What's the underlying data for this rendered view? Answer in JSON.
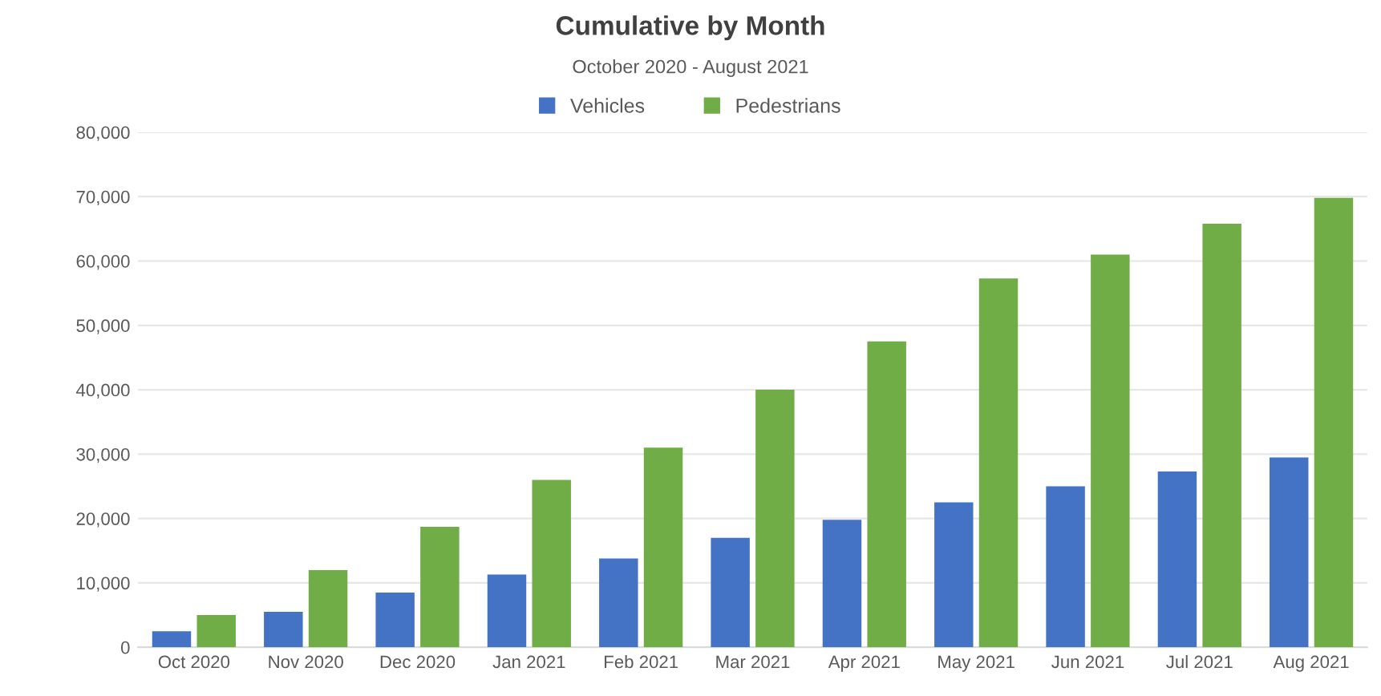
{
  "chart_data": {
    "type": "bar",
    "title": "Cumulative by Month",
    "subtitle": "October 2020 - August 2021",
    "categories": [
      "Oct 2020",
      "Nov 2020",
      "Dec 2020",
      "Jan 2021",
      "Feb 2021",
      "Mar 2021",
      "Apr 2021",
      "May 2021",
      "Jun 2021",
      "Jul 2021",
      "Aug 2021"
    ],
    "series": [
      {
        "name": "Vehicles",
        "color": "#4472c4",
        "values": [
          2500,
          5500,
          8500,
          11300,
          13800,
          17000,
          19800,
          22500,
          25000,
          27300,
          29500
        ]
      },
      {
        "name": "Pedestrians",
        "color": "#70ad47",
        "values": [
          5000,
          12000,
          18700,
          26000,
          31000,
          40000,
          47500,
          57300,
          61000,
          65800,
          69800
        ]
      }
    ],
    "ylim": [
      0,
      80000
    ],
    "yticks": [
      {
        "value": 0,
        "label": "0"
      },
      {
        "value": 10000,
        "label": "10,000"
      },
      {
        "value": 20000,
        "label": "20,000"
      },
      {
        "value": 30000,
        "label": "30,000"
      },
      {
        "value": 40000,
        "label": "40,000"
      },
      {
        "value": 50000,
        "label": "50,000"
      },
      {
        "value": 60000,
        "label": "60,000"
      },
      {
        "value": 70000,
        "label": "70,000"
      },
      {
        "value": 80000,
        "label": "80,000"
      }
    ],
    "grid": "y",
    "legend": "top"
  }
}
